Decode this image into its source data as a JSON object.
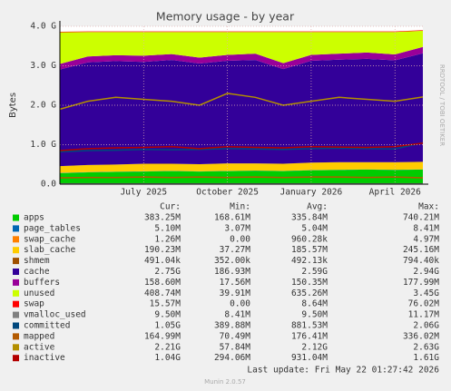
{
  "chart_data": {
    "type": "area",
    "title": "Memory usage - by year",
    "y_label": "Bytes",
    "side_text": "RRDTOOL / TOBI OETIKER",
    "x": [
      "2025-04",
      "2025-05",
      "2025-06",
      "2025-07",
      "2025-08",
      "2025-09",
      "2025-10",
      "2025-11",
      "2025-12",
      "2026-01",
      "2026-02",
      "2026-03",
      "2026-04",
      "2026-05"
    ],
    "xticks": [
      {
        "value": "2025-07",
        "label": "July 2025"
      },
      {
        "value": "2025-10",
        "label": "October 2025"
      },
      {
        "value": "2026-01",
        "label": "January 2026"
      },
      {
        "value": "2026-04",
        "label": "April 2026"
      }
    ],
    "ylim": [
      0,
      4
    ],
    "yticks": [
      {
        "value": 0,
        "label": "0.0"
      },
      {
        "value": 1,
        "label": "1.0 G"
      },
      {
        "value": 2,
        "label": "2.0 G"
      },
      {
        "value": 3,
        "label": "3.0 G"
      },
      {
        "value": 4,
        "label": "4.0 G"
      }
    ],
    "grid": true,
    "legend_headers": [
      "Cur:",
      "Min:",
      "Avg:",
      "Max:"
    ],
    "series": [
      {
        "name": "apps",
        "color": "#00CC00",
        "stacked": true,
        "values": [
          0.28,
          0.3,
          0.31,
          0.32,
          0.33,
          0.32,
          0.33,
          0.34,
          0.33,
          0.35,
          0.36,
          0.37,
          0.36,
          0.37
        ],
        "stats": [
          "383.25M",
          "168.61M",
          "335.84M",
          "740.21M"
        ]
      },
      {
        "name": "page_tables",
        "color": "#0066B3",
        "stacked": true,
        "values": [
          0.005,
          0.005,
          0.005,
          0.005,
          0.005,
          0.005,
          0.005,
          0.005,
          0.005,
          0.005,
          0.005,
          0.005,
          0.005,
          0.005
        ],
        "stats": [
          "5.10M",
          "3.07M",
          "5.04M",
          "8.41M"
        ]
      },
      {
        "name": "swap_cache",
        "color": "#FF8000",
        "stacked": true,
        "values": [
          0.001,
          0.001,
          0.001,
          0.001,
          0.001,
          0.001,
          0.001,
          0.001,
          0.001,
          0.001,
          0.001,
          0.001,
          0.001,
          0.001
        ],
        "stats": [
          "1.26M",
          "0.00",
          "960.28k",
          "4.97M"
        ]
      },
      {
        "name": "slab_cache",
        "color": "#FFCC00",
        "stacked": true,
        "values": [
          0.17,
          0.18,
          0.18,
          0.19,
          0.18,
          0.18,
          0.19,
          0.18,
          0.18,
          0.19,
          0.19,
          0.18,
          0.19,
          0.19
        ],
        "stats": [
          "190.23M",
          "37.27M",
          "185.57M",
          "245.16M"
        ]
      },
      {
        "name": "shmem",
        "color": "#A05000",
        "stacked": true,
        "values": [
          0.0005,
          0.0005,
          0.0005,
          0.0005,
          0.0005,
          0.0005,
          0.0005,
          0.0005,
          0.0005,
          0.0005,
          0.0005,
          0.0005,
          0.0005,
          0.0005
        ],
        "stats": [
          "491.04k",
          "352.00k",
          "492.13k",
          "794.40k"
        ]
      },
      {
        "name": "cache",
        "color": "#330099",
        "stacked": true,
        "values": [
          2.45,
          2.6,
          2.62,
          2.58,
          2.63,
          2.55,
          2.6,
          2.62,
          2.4,
          2.58,
          2.6,
          2.62,
          2.58,
          2.75
        ],
        "stats": [
          "2.75G",
          "186.93M",
          "2.59G",
          "2.94G"
        ]
      },
      {
        "name": "buffers",
        "color": "#990099",
        "stacked": true,
        "values": [
          0.14,
          0.15,
          0.15,
          0.16,
          0.15,
          0.15,
          0.15,
          0.16,
          0.15,
          0.15,
          0.15,
          0.16,
          0.15,
          0.16
        ],
        "stats": [
          "158.60M",
          "17.56M",
          "150.35M",
          "177.99M"
        ]
      },
      {
        "name": "unused",
        "color": "#CCFF00",
        "stacked": true,
        "values": [
          0.8,
          0.62,
          0.59,
          0.6,
          0.56,
          0.65,
          0.58,
          0.55,
          0.79,
          0.58,
          0.55,
          0.52,
          0.57,
          0.41
        ],
        "stats": [
          "408.74M",
          "39.91M",
          "635.26M",
          "3.45G"
        ]
      },
      {
        "name": "swap",
        "color": "#FF0000",
        "stacked": true,
        "values": [
          0.015,
          0.015,
          0.015,
          0.015,
          0.015,
          0.015,
          0.015,
          0.015,
          0.015,
          0.015,
          0.015,
          0.015,
          0.015,
          0.015
        ],
        "stats": [
          "15.57M",
          "0.00",
          "8.64M",
          "76.02M"
        ]
      },
      {
        "name": "vmalloc_used",
        "color": "#808080",
        "stacked": false,
        "values": [
          0.0095,
          0.0095,
          0.0095,
          0.0095,
          0.0095,
          0.0095,
          0.0095,
          0.0095,
          0.0095,
          0.0095,
          0.0095,
          0.0095,
          0.0095,
          0.0095
        ],
        "stats": [
          "9.50M",
          "8.41M",
          "9.50M",
          "11.17M"
        ]
      },
      {
        "name": "committed",
        "color": "#00487D",
        "stacked": false,
        "values": [
          0.82,
          0.85,
          0.86,
          0.88,
          0.87,
          0.88,
          0.9,
          0.89,
          0.88,
          0.9,
          0.91,
          0.9,
          0.89,
          1.05
        ],
        "stats": [
          "1.05G",
          "389.88M",
          "881.53M",
          "2.06G"
        ]
      },
      {
        "name": "mapped",
        "color": "#B35A00",
        "stacked": false,
        "values": [
          0.16,
          0.17,
          0.17,
          0.18,
          0.17,
          0.18,
          0.17,
          0.18,
          0.17,
          0.18,
          0.18,
          0.17,
          0.18,
          0.16
        ],
        "stats": [
          "164.99M",
          "70.49M",
          "176.41M",
          "336.02M"
        ]
      },
      {
        "name": "active",
        "color": "#B38F00",
        "stacked": false,
        "values": [
          1.9,
          2.1,
          2.2,
          2.15,
          2.1,
          2.0,
          2.3,
          2.2,
          2.0,
          2.1,
          2.2,
          2.15,
          2.1,
          2.21
        ],
        "stats": [
          "2.21G",
          "57.84M",
          "2.12G",
          "2.63G"
        ]
      },
      {
        "name": "inactive",
        "color": "#B30000",
        "stacked": false,
        "values": [
          0.85,
          0.9,
          0.92,
          0.93,
          0.95,
          0.9,
          0.95,
          0.93,
          0.92,
          0.95,
          0.94,
          0.93,
          0.95,
          1.04
        ],
        "stats": [
          "1.04G",
          "294.06M",
          "931.04M",
          "1.61G"
        ]
      }
    ],
    "last_update": "Last update: Fri May 22 01:27:42 2026",
    "version": "Munin 2.0.57"
  }
}
